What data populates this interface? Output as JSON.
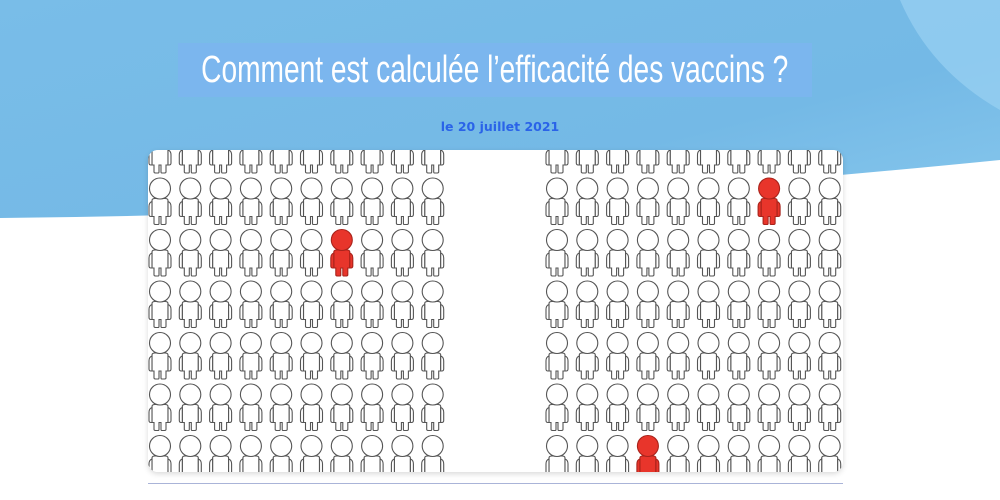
{
  "header": {
    "title": "Comment est calculée l’efficacité des vaccins ?",
    "date": "le 20 juillet 2021"
  },
  "colors": {
    "background_top": "#6fb6e6",
    "title_highlight": "#7bb6ee",
    "date_text": "#2a63e8",
    "figure_outline": "#555555",
    "infected_fill": "#e8352b"
  },
  "illustration": {
    "panels": [
      {
        "name": "left",
        "columns": 10,
        "rows": 7,
        "infected": [
          [
            2,
            6
          ]
        ]
      },
      {
        "name": "right",
        "columns": 10,
        "rows": 7,
        "infected": [
          [
            1,
            7
          ],
          [
            6,
            3
          ]
        ]
      }
    ],
    "icon": "person-figure-icon"
  }
}
